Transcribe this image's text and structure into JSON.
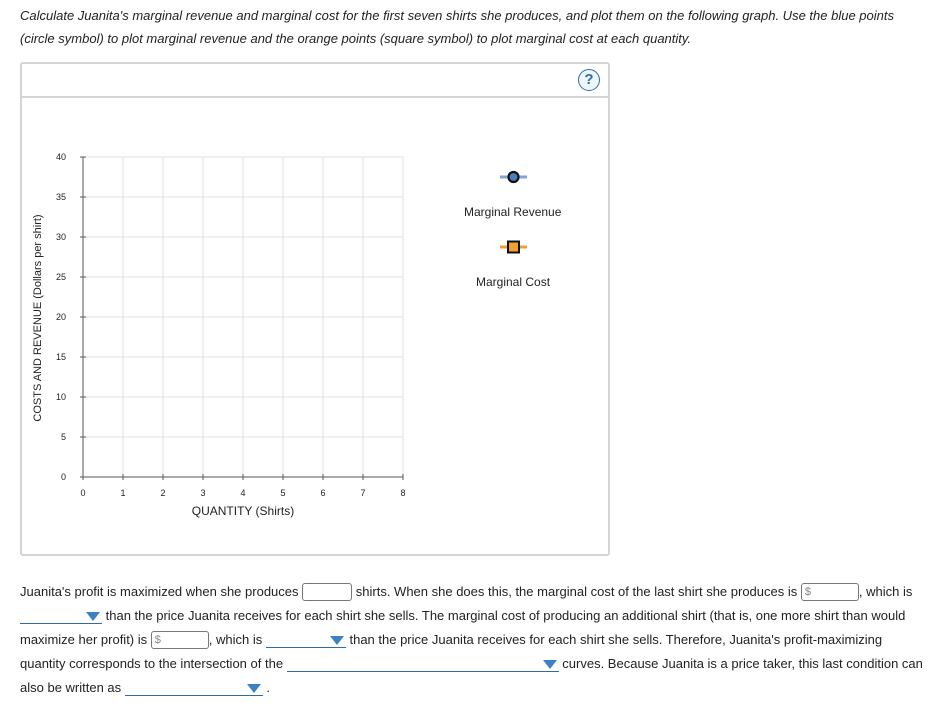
{
  "instructions": "Calculate Juanita's marginal revenue and marginal cost for the first seven shirts she produces, and plot them on the following graph. Use the blue points (circle symbol) to plot marginal revenue and the orange points (square symbol) to plot marginal cost at each quantity.",
  "graph": {
    "help_label": "?",
    "legend": {
      "marginal_revenue": "Marginal Revenue",
      "marginal_cost": "Marginal Cost"
    },
    "colors": {
      "mr_line": "#7fa7d4",
      "mr_marker_fill": "#4a7fbf",
      "mc_line": "#f0a032",
      "mc_marker_fill": "#f0a032",
      "grid": "#e2e2e2"
    }
  },
  "chart_data": {
    "type": "scatter",
    "title": "",
    "xlabel": "QUANTITY (Shirts)",
    "ylabel": "COSTS AND REVENUE (Dollars per shirt)",
    "xlim": [
      0,
      8
    ],
    "ylim": [
      0,
      40
    ],
    "x_ticks": [
      0,
      1,
      2,
      3,
      4,
      5,
      6,
      7,
      8
    ],
    "y_ticks": [
      0,
      5,
      10,
      15,
      20,
      25,
      30,
      35,
      40
    ],
    "grid": true,
    "legend_position": "right",
    "series": [
      {
        "name": "Marginal Revenue",
        "marker": "circle",
        "points": []
      },
      {
        "name": "Marginal Cost",
        "marker": "square",
        "points": []
      }
    ]
  },
  "question": {
    "s1": "Juanita's profit is maximized when she produces",
    "s2": "shirts. When she does this, the marginal cost of the last shirt she produces is",
    "s3": ",",
    "s4": "which is",
    "s5": "than the price Juanita receives for each shirt she sells. The marginal cost of producing an additional shirt (that is, one more shirt than would maximize her profit) is",
    "s6": ", which is",
    "s7": "than the price Juanita receives for each shirt she sells. Therefore, Juanita's profit-maximizing quantity corresponds to the intersection of the",
    "s8": "curves. Because Juanita is a price taker, this last condition can also be written as",
    "s9": ".",
    "currency_symbol": "$"
  }
}
